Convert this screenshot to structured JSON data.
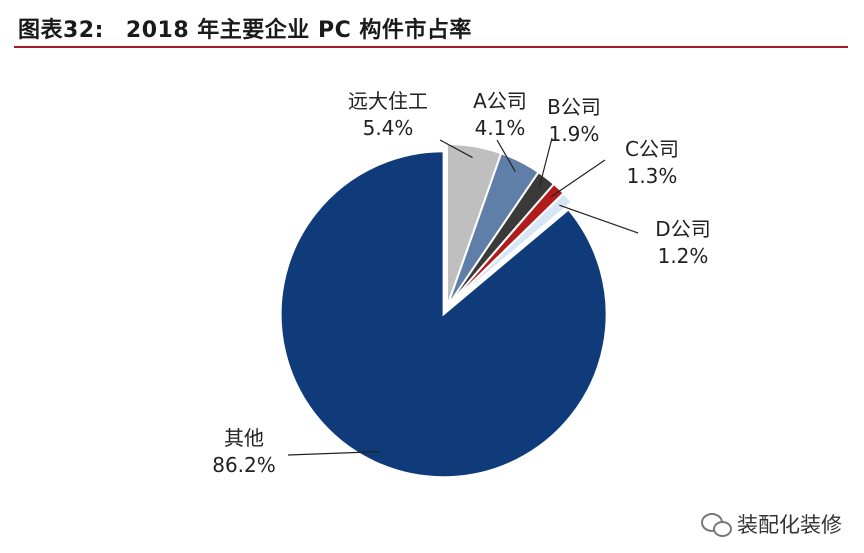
{
  "header": {
    "figure_label": "图表32:",
    "title": "2018 年主要企业 PC 构件市占率"
  },
  "chart_data": {
    "type": "pie",
    "title": "2018 年主要企业 PC 构件市占率",
    "start_angle_deg": 0,
    "direction": "clockwise",
    "slices": [
      {
        "name": "远大住工",
        "value": 5.4,
        "label": "5.4%",
        "color": "#bfbfbf"
      },
      {
        "name": "A公司",
        "value": 4.1,
        "label": "4.1%",
        "color": "#5f7fa8"
      },
      {
        "name": "B公司",
        "value": 1.9,
        "label": "1.9%",
        "color": "#3a3a3a"
      },
      {
        "name": "C公司",
        "value": 1.3,
        "label": "1.3%",
        "color": "#b11b1b"
      },
      {
        "name": "D公司",
        "value": 1.2,
        "label": "1.2%",
        "color": "#d6e6f5"
      },
      {
        "name": "其他",
        "value": 86.2,
        "label": "86.2%",
        "color": "#0f3b7a"
      }
    ]
  },
  "watermark": {
    "text": "装配化装修",
    "icon": "wechat-icon"
  }
}
